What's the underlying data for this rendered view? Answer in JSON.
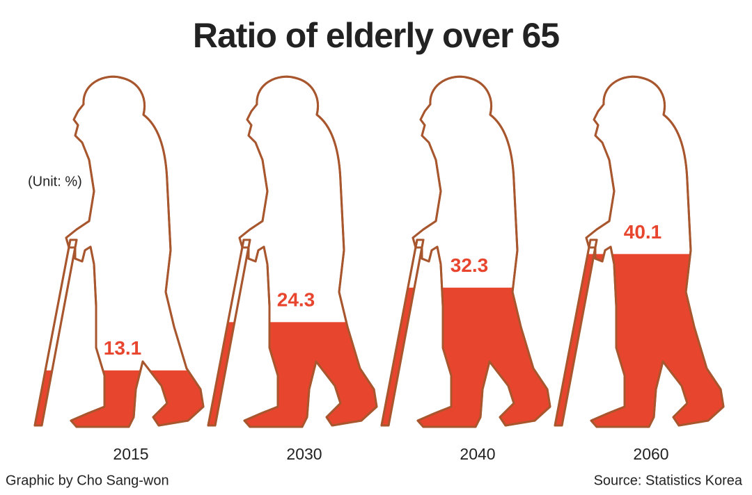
{
  "chart_data": {
    "type": "pictograph",
    "title": "Ratio of elderly over 65",
    "unit_label": "(Unit: %)",
    "categories": [
      "2015",
      "2030",
      "2040",
      "2060"
    ],
    "values": [
      13.1,
      24.3,
      32.3,
      40.1
    ],
    "color": "#e8452f",
    "outline_color": "#a8562e",
    "credit": "Graphic by Cho Sang-won",
    "source": "Source: Statistics Korea"
  }
}
